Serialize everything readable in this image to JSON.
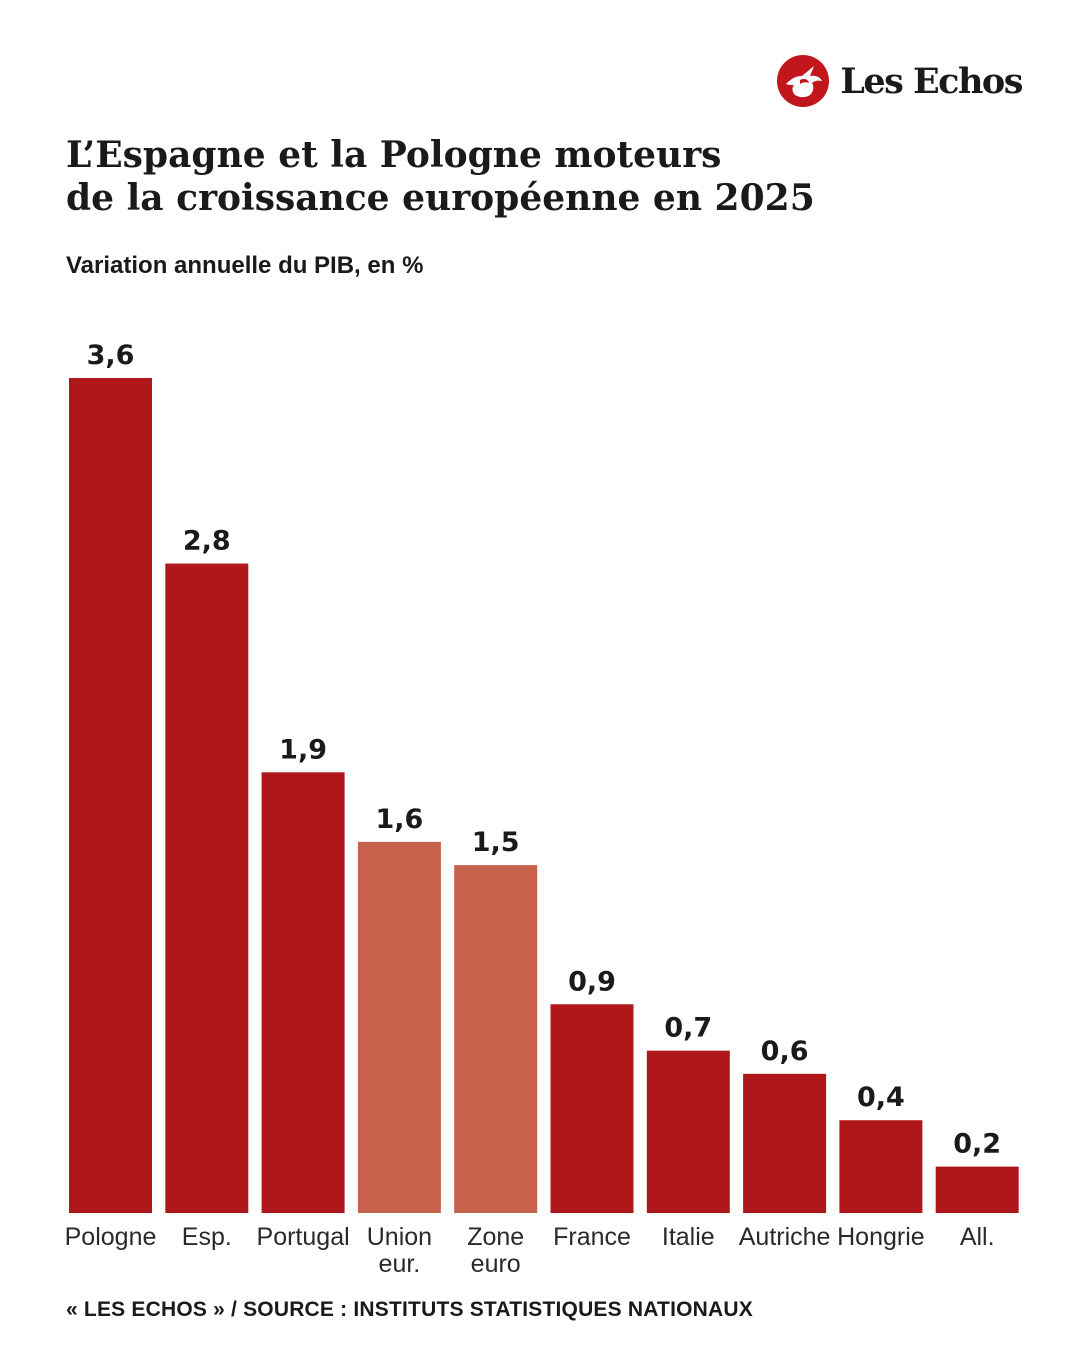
{
  "brand": {
    "name": "Les Echos",
    "logo_icon": "les-echos-mercury-head-icon",
    "logo_color": "#c0161c"
  },
  "title_lines": [
    "L’Espagne et la Pologne moteurs",
    "de la croissance européenne en 2025"
  ],
  "subtitle": "Variation annuelle du PIB, en %",
  "source": "« LES ECHOS » / SOURCE : INSTITUTS STATISTIQUES NATIONAUX",
  "colors": {
    "country": "#b0171b",
    "aggregate": "#c8614b"
  },
  "chart_data": {
    "type": "bar",
    "categories": [
      [
        "Pologne"
      ],
      [
        "Esp."
      ],
      [
        "Portugal"
      ],
      [
        "Union",
        "eur."
      ],
      [
        "Zone",
        "euro"
      ],
      [
        "France"
      ],
      [
        "Italie"
      ],
      [
        "Autriche"
      ],
      [
        "Hongrie"
      ],
      [
        "All."
      ]
    ],
    "values": [
      3.6,
      2.8,
      1.9,
      1.6,
      1.5,
      0.9,
      0.7,
      0.6,
      0.4,
      0.2
    ],
    "value_labels": [
      "3,6",
      "2,8",
      "1,9",
      "1,6",
      "1,5",
      "0,9",
      "0,7",
      "0,6",
      "0,4",
      "0,2"
    ],
    "highlight": [
      false,
      false,
      false,
      true,
      true,
      false,
      false,
      false,
      false,
      false
    ],
    "ylim": [
      0,
      3.6
    ],
    "grid": false,
    "legend": "none",
    "xlabel": "",
    "ylabel": ""
  }
}
